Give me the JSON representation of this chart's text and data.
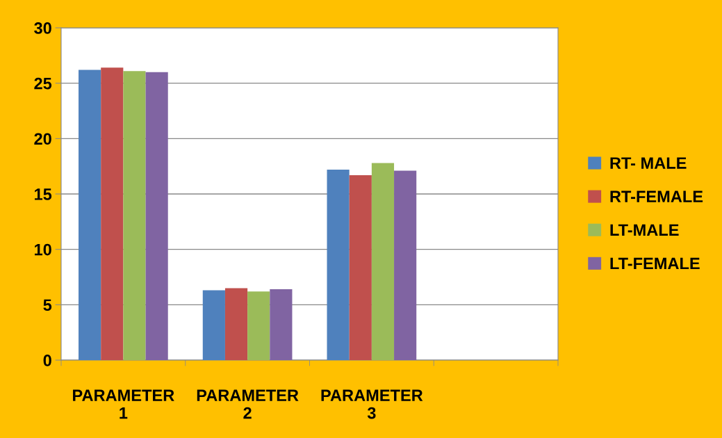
{
  "chart_data": {
    "type": "bar",
    "categories": [
      "PARAMETER 1",
      "PARAMETER 2",
      "PARAMETER 3",
      null
    ],
    "series": [
      {
        "name": "RT- MALE",
        "color": "#4f81bd",
        "values": [
          26.2,
          6.3,
          17.2,
          null
        ]
      },
      {
        "name": "RT-FEMALE",
        "color": "#c0504d",
        "values": [
          26.4,
          6.5,
          16.7,
          null
        ]
      },
      {
        "name": "LT-MALE",
        "color": "#9bbb59",
        "values": [
          26.1,
          6.2,
          17.8,
          null
        ]
      },
      {
        "name": "LT-FEMALE",
        "color": "#8064a2",
        "values": [
          26.0,
          6.4,
          17.1,
          null
        ]
      }
    ],
    "ylim": [
      0,
      30
    ],
    "yticks": [
      0,
      5,
      10,
      15,
      20,
      25,
      30
    ],
    "grid": "y",
    "legend": "right"
  }
}
